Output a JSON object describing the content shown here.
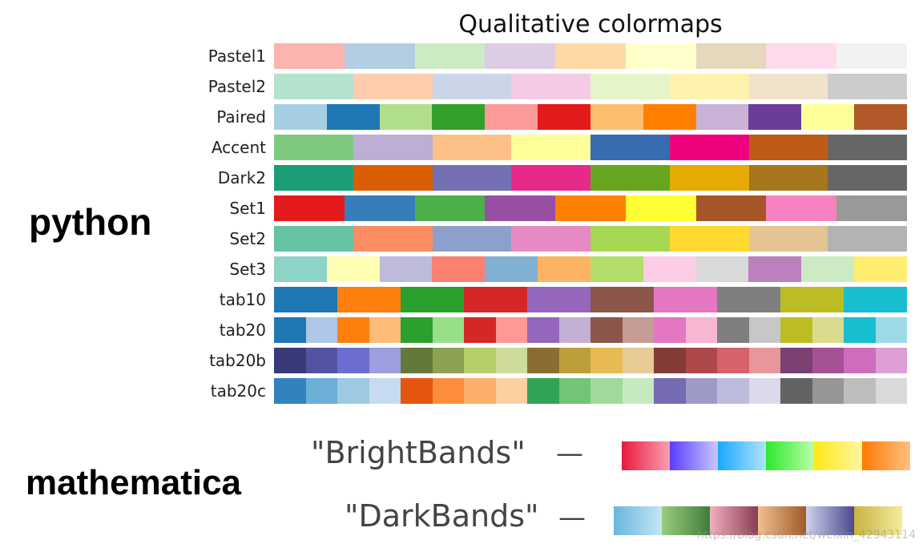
{
  "title": "Qualitative colormaps",
  "python_label": "python",
  "mathematica_label": "mathematica",
  "colormaps": [
    {
      "name": "Pastel1",
      "colors": [
        "#fbb4ae",
        "#b3cde3",
        "#ccebc5",
        "#decbe4",
        "#fed9a6",
        "#ffffcc",
        "#e5d8bd",
        "#fddaec",
        "#f2f2f2"
      ]
    },
    {
      "name": "Pastel2",
      "colors": [
        "#b3e2cd",
        "#fdcdac",
        "#cbd5e8",
        "#f4cae4",
        "#e6f5c9",
        "#fff2ae",
        "#f1e2cc",
        "#cccccc"
      ]
    },
    {
      "name": "Paired",
      "colors": [
        "#a6cee3",
        "#1f78b4",
        "#b2df8a",
        "#33a02c",
        "#fb9a99",
        "#e31a1c",
        "#fdbf6f",
        "#ff7f00",
        "#cab2d6",
        "#6a3d9a",
        "#ffff99",
        "#b15928"
      ]
    },
    {
      "name": "Accent",
      "colors": [
        "#7fc97f",
        "#beaed4",
        "#fdc086",
        "#ffff99",
        "#386cb0",
        "#f0027f",
        "#bf5b17",
        "#666666"
      ]
    },
    {
      "name": "Dark2",
      "colors": [
        "#1b9e77",
        "#d95f02",
        "#7570b3",
        "#e7298a",
        "#66a61e",
        "#e6ab02",
        "#a6761d",
        "#666666"
      ]
    },
    {
      "name": "Set1",
      "colors": [
        "#e41a1c",
        "#377eb8",
        "#4daf4a",
        "#984ea3",
        "#ff7f00",
        "#ffff33",
        "#a65628",
        "#f781bf",
        "#999999"
      ]
    },
    {
      "name": "Set2",
      "colors": [
        "#66c2a5",
        "#fc8d62",
        "#8da0cb",
        "#e78ac3",
        "#a6d854",
        "#ffd92f",
        "#e5c494",
        "#b3b3b3"
      ]
    },
    {
      "name": "Set3",
      "colors": [
        "#8dd3c7",
        "#ffffb3",
        "#bebada",
        "#fb8072",
        "#80b1d3",
        "#fdb462",
        "#b3de69",
        "#fccde5",
        "#d9d9d9",
        "#bc80bd",
        "#ccebc5",
        "#ffed6f"
      ]
    },
    {
      "name": "tab10",
      "colors": [
        "#1f77b4",
        "#ff7f0e",
        "#2ca02c",
        "#d62728",
        "#9467bd",
        "#8c564b",
        "#e377c2",
        "#7f7f7f",
        "#bcbd22",
        "#17becf"
      ]
    },
    {
      "name": "tab20",
      "colors": [
        "#1f77b4",
        "#aec7e8",
        "#ff7f0e",
        "#ffbb78",
        "#2ca02c",
        "#98df8a",
        "#d62728",
        "#ff9896",
        "#9467bd",
        "#c5b0d5",
        "#8c564b",
        "#c49c94",
        "#e377c2",
        "#f7b6d2",
        "#7f7f7f",
        "#c7c7c7",
        "#bcbd22",
        "#dbdb8d",
        "#17becf",
        "#9edae5"
      ]
    },
    {
      "name": "tab20b",
      "colors": [
        "#393b79",
        "#5254a3",
        "#6b6ecf",
        "#9c9ede",
        "#637939",
        "#8ca252",
        "#b5cf6b",
        "#cedb9c",
        "#8c6d31",
        "#bd9e39",
        "#e7ba52",
        "#e7cb94",
        "#843c39",
        "#ad494a",
        "#d6616b",
        "#e7969c",
        "#7b4173",
        "#a55194",
        "#ce6dbd",
        "#de9ed6"
      ]
    },
    {
      "name": "tab20c",
      "colors": [
        "#3182bd",
        "#6baed6",
        "#9ecae1",
        "#c6dbef",
        "#e6550d",
        "#fd8d3c",
        "#fdae6b",
        "#fdd0a2",
        "#31a354",
        "#74c476",
        "#a1d99b",
        "#c7e9c0",
        "#756bb1",
        "#9e9ac8",
        "#bcbddc",
        "#dadaeb",
        "#636363",
        "#969696",
        "#bdbdbd",
        "#d9d9d9"
      ]
    }
  ],
  "mathematica": {
    "bright": {
      "name": "\"BrightBands\"",
      "dash": "—",
      "bands": [
        [
          "#e8193c",
          "#f9a0b0"
        ],
        [
          "#5a3cff",
          "#c8c8ff"
        ],
        [
          "#1aa7ff",
          "#b0e4ff"
        ],
        [
          "#2ee82e",
          "#b8ffa8"
        ],
        [
          "#ffe81a",
          "#fff6a0"
        ],
        [
          "#ff7a00",
          "#ffc080"
        ]
      ]
    },
    "dark": {
      "name": "\"DarkBands\"",
      "dash": "—",
      "bands": [
        [
          "#6ab6dc",
          "#c4e6f4"
        ],
        [
          "#9acd80",
          "#3e7e3a"
        ],
        [
          "#f0b0c0",
          "#8a3c50"
        ],
        [
          "#f0c090",
          "#a05a28"
        ],
        [
          "#d0d0ec",
          "#4a4a8c"
        ],
        [
          "#c8b440",
          "#f4ec9c"
        ]
      ]
    }
  },
  "watermark": "https://blog.csdn.net/weixin_42943114"
}
